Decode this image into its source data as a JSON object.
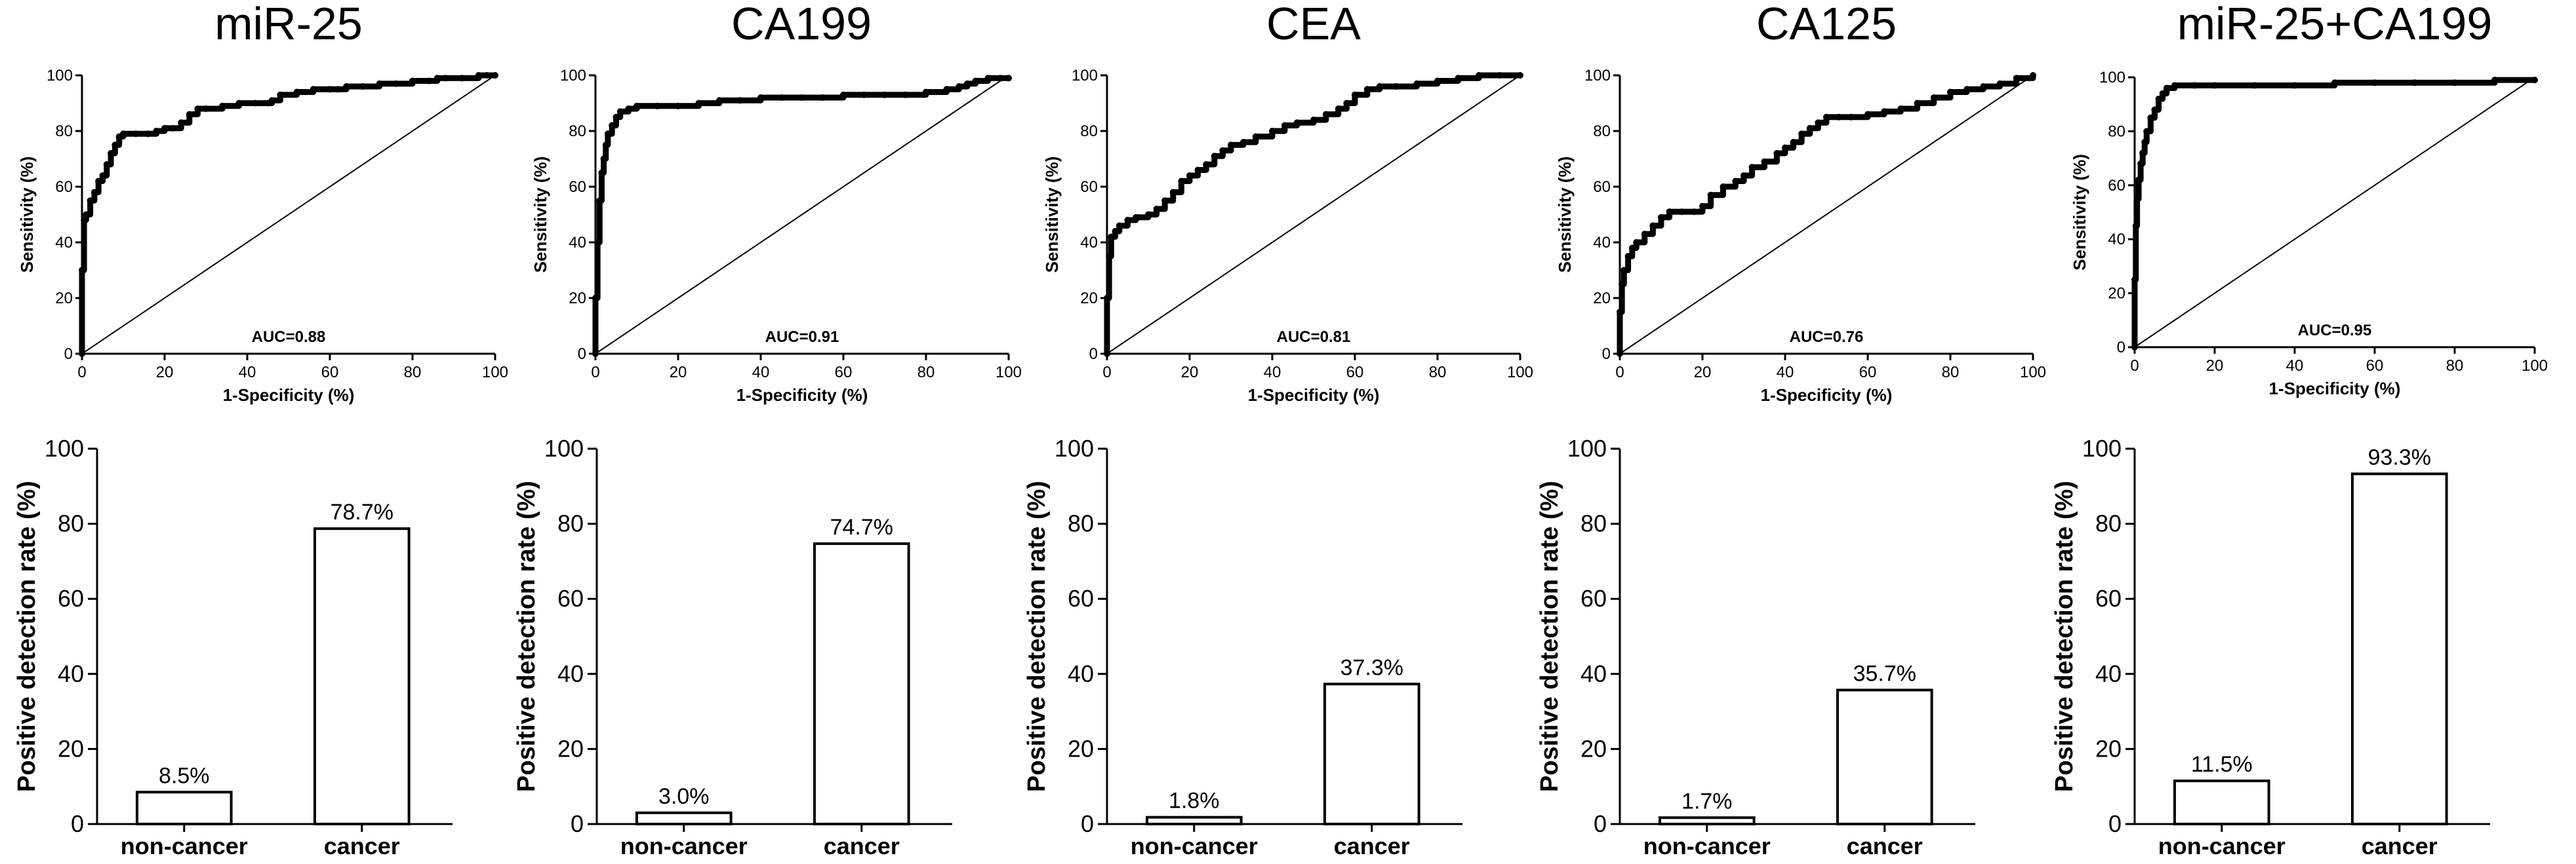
{
  "chart_data": [
    {
      "type": "line",
      "title": "miR-25",
      "xlabel": "1-Specificity (%)",
      "ylabel": "Sensitivity (%)",
      "xlim": [
        0,
        100
      ],
      "ylim": [
        0,
        100
      ],
      "xticks": [
        "0",
        "20",
        "40",
        "60",
        "80",
        "100"
      ],
      "yticks": [
        "0",
        "20",
        "40",
        "60",
        "80",
        "100"
      ],
      "annotation": "AUC=0.88",
      "series": [
        {
          "x": [
            0,
            0,
            0.5,
            1,
            2,
            3,
            4,
            5,
            6,
            7,
            8,
            9,
            10,
            13,
            16,
            18,
            20,
            22,
            24,
            26,
            28,
            30,
            34,
            38,
            42,
            45,
            46,
            48,
            52,
            56,
            60,
            62,
            64,
            68,
            72,
            76,
            80,
            84,
            86,
            88,
            92,
            96,
            98,
            100
          ],
          "y": [
            0,
            30,
            48,
            50,
            55,
            58,
            62,
            64,
            68,
            72,
            75,
            78,
            79,
            79,
            79,
            80,
            81,
            81,
            83,
            86,
            88,
            88,
            89,
            90,
            90,
            90,
            91,
            93,
            94,
            95,
            95,
            95,
            96,
            96,
            97,
            97,
            98,
            98,
            99,
            99,
            99,
            100,
            100,
            100
          ]
        },
        {
          "x": [
            0,
            100
          ],
          "y": [
            0,
            100
          ]
        }
      ]
    },
    {
      "type": "line",
      "title": "CA199",
      "xlabel": "1-Specificity (%)",
      "ylabel": "Sensitivity (%)",
      "xlim": [
        0,
        100
      ],
      "ylim": [
        0,
        100
      ],
      "xticks": [
        "0",
        "20",
        "40",
        "60",
        "80",
        "100"
      ],
      "yticks": [
        "0",
        "20",
        "40",
        "60",
        "80",
        "100"
      ],
      "annotation": "AUC=0.91",
      "series": [
        {
          "x": [
            0,
            0,
            0.5,
            1,
            1.5,
            2,
            2.5,
            3,
            4,
            5,
            6,
            8,
            10,
            15,
            20,
            25,
            30,
            35,
            40,
            45,
            50,
            55,
            60,
            65,
            70,
            75,
            80,
            85,
            88,
            90,
            92,
            95,
            98,
            100
          ],
          "y": [
            0,
            20,
            40,
            55,
            65,
            70,
            75,
            79,
            82,
            85,
            87,
            88,
            89,
            89,
            89,
            90,
            91,
            91,
            92,
            92,
            92,
            92,
            93,
            93,
            93,
            93,
            94,
            95,
            96,
            97,
            98,
            99,
            99,
            99
          ]
        },
        {
          "x": [
            0,
            100
          ],
          "y": [
            0,
            100
          ]
        }
      ]
    },
    {
      "type": "line",
      "title": "CEA",
      "xlabel": "1-Specificity (%)",
      "ylabel": "Sensitivity (%)",
      "xlim": [
        0,
        100
      ],
      "ylim": [
        0,
        100
      ],
      "xticks": [
        "0",
        "20",
        "40",
        "60",
        "80",
        "100"
      ],
      "yticks": [
        "0",
        "20",
        "40",
        "60",
        "80",
        "100"
      ],
      "annotation": "AUC=0.81",
      "series": [
        {
          "x": [
            0,
            0,
            0.5,
            1,
            2,
            3,
            5,
            7,
            10,
            12,
            14,
            16,
            18,
            20,
            22,
            24,
            26,
            28,
            30,
            33,
            36,
            40,
            43,
            46,
            50,
            53,
            56,
            58,
            60,
            63,
            66,
            70,
            75,
            80,
            85,
            90,
            95,
            100
          ],
          "y": [
            0,
            20,
            35,
            42,
            44,
            46,
            48,
            49,
            50,
            52,
            55,
            58,
            62,
            64,
            66,
            68,
            71,
            73,
            75,
            76,
            78,
            80,
            82,
            83,
            84,
            86,
            88,
            90,
            93,
            95,
            96,
            96,
            97,
            98,
            99,
            100,
            100,
            100
          ]
        },
        {
          "x": [
            0,
            100
          ],
          "y": [
            0,
            100
          ]
        }
      ]
    },
    {
      "type": "line",
      "title": "CA125",
      "xlabel": "1-Specificity (%)",
      "ylabel": "Sensitivity (%)",
      "xlim": [
        0,
        100
      ],
      "ylim": [
        0,
        100
      ],
      "xticks": [
        "0",
        "20",
        "40",
        "60",
        "80",
        "100"
      ],
      "yticks": [
        "0",
        "20",
        "40",
        "60",
        "80",
        "100"
      ],
      "annotation": "AUC=0.76",
      "series": [
        {
          "x": [
            0,
            0,
            0.5,
            1,
            2,
            3,
            4,
            6,
            8,
            10,
            12,
            15,
            18,
            20,
            22,
            25,
            28,
            30,
            32,
            35,
            38,
            40,
            42,
            44,
            46,
            48,
            50,
            53,
            56,
            60,
            64,
            68,
            72,
            76,
            80,
            84,
            88,
            92,
            96,
            100
          ],
          "y": [
            0,
            15,
            25,
            30,
            35,
            38,
            40,
            43,
            46,
            49,
            51,
            51,
            51,
            53,
            57,
            60,
            62,
            64,
            67,
            69,
            72,
            74,
            76,
            79,
            81,
            83,
            85,
            85,
            85,
            86,
            87,
            88,
            90,
            92,
            94,
            95,
            96,
            97,
            99,
            100
          ]
        },
        {
          "x": [
            0,
            100
          ],
          "y": [
            0,
            100
          ]
        }
      ]
    },
    {
      "type": "line",
      "title": "miR-25+CA199",
      "xlabel": "1-Specificity (%)",
      "ylabel": "Sensitivity (%)",
      "xlim": [
        0,
        100
      ],
      "ylim": [
        0,
        100
      ],
      "xticks": [
        "0",
        "20",
        "40",
        "60",
        "80",
        "100"
      ],
      "yticks": [
        "0",
        "20",
        "40",
        "60",
        "80",
        "100"
      ],
      "annotation": "AUC=0.95",
      "series": [
        {
          "x": [
            0,
            0,
            0.3,
            0.6,
            1,
            1.5,
            2,
            2.5,
            3,
            4,
            5,
            6,
            7,
            8,
            10,
            15,
            20,
            30,
            40,
            50,
            60,
            70,
            80,
            90,
            100
          ],
          "y": [
            0,
            25,
            45,
            55,
            62,
            68,
            72,
            76,
            80,
            85,
            88,
            92,
            94,
            96,
            97,
            97,
            97,
            97,
            97,
            98,
            98,
            98,
            98,
            99,
            99
          ]
        },
        {
          "x": [
            0,
            100
          ],
          "y": [
            0,
            100
          ]
        }
      ]
    },
    {
      "type": "bar",
      "title": "",
      "xlabel": "",
      "ylabel": "Positive detection rate (%)",
      "ylim": [
        0,
        100
      ],
      "yticks": [
        "0",
        "20",
        "40",
        "60",
        "80",
        "100"
      ],
      "categories": [
        "non-cancer",
        "cancer"
      ],
      "values": [
        8.5,
        78.7
      ],
      "labels": [
        "8.5%",
        "78.7%"
      ]
    },
    {
      "type": "bar",
      "title": "",
      "xlabel": "",
      "ylabel": "Positive detection rate (%)",
      "ylim": [
        0,
        100
      ],
      "yticks": [
        "0",
        "20",
        "40",
        "60",
        "80",
        "100"
      ],
      "categories": [
        "non-cancer",
        "cancer"
      ],
      "values": [
        3.0,
        74.7
      ],
      "labels": [
        "3.0%",
        "74.7%"
      ]
    },
    {
      "type": "bar",
      "title": "",
      "xlabel": "",
      "ylabel": "Positive detection rate (%)",
      "ylim": [
        0,
        100
      ],
      "yticks": [
        "0",
        "20",
        "40",
        "60",
        "80",
        "100"
      ],
      "categories": [
        "non-cancer",
        "cancer"
      ],
      "values": [
        1.8,
        37.3
      ],
      "labels": [
        "1.8%",
        "37.3%"
      ]
    },
    {
      "type": "bar",
      "title": "",
      "xlabel": "",
      "ylabel": "Positive detection rate (%)",
      "ylim": [
        0,
        100
      ],
      "yticks": [
        "0",
        "20",
        "40",
        "60",
        "80",
        "100"
      ],
      "categories": [
        "non-cancer",
        "cancer"
      ],
      "values": [
        1.7,
        35.7
      ],
      "labels": [
        "1.7%",
        "35.7%"
      ]
    },
    {
      "type": "bar",
      "title": "",
      "xlabel": "",
      "ylabel": "Positive detection rate (%)",
      "ylim": [
        0,
        100
      ],
      "yticks": [
        "0",
        "20",
        "40",
        "60",
        "80",
        "100"
      ],
      "categories": [
        "non-cancer",
        "cancer"
      ],
      "values": [
        11.5,
        93.3
      ],
      "labels": [
        "11.5%",
        "93.3%"
      ]
    }
  ]
}
